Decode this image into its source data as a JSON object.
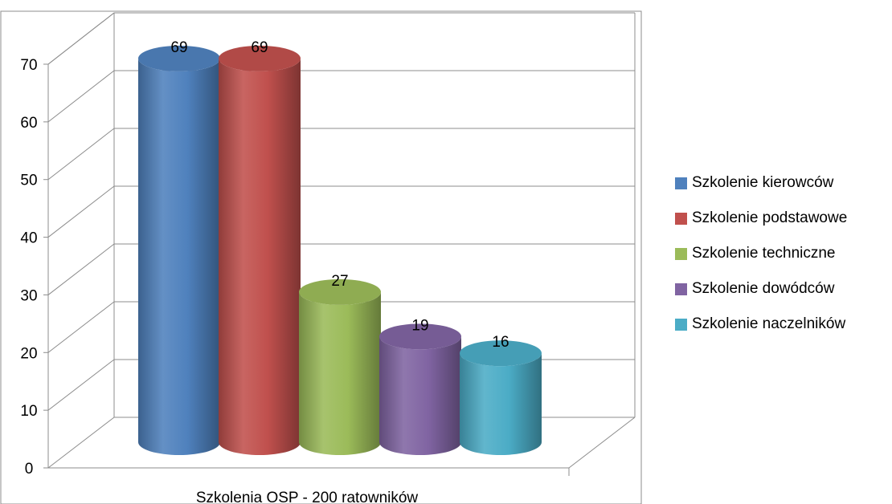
{
  "chart_data": {
    "type": "bar",
    "style": "3d-cylinder",
    "categories": [
      "Szkolenia OSP - 200 ratowników"
    ],
    "series": [
      {
        "name": "Szkolenie kierowców",
        "values": [
          69
        ],
        "color": "#4F81BD"
      },
      {
        "name": "Szkolenie podstawowe",
        "values": [
          69
        ],
        "color": "#C0504D"
      },
      {
        "name": "Szkolenie techniczne",
        "values": [
          27
        ],
        "color": "#9BBB59"
      },
      {
        "name": "Szkolenie dowódców",
        "values": [
          19
        ],
        "color": "#8064A2"
      },
      {
        "name": "Szkolenie naczelników",
        "values": [
          16
        ],
        "color": "#4BACC6"
      }
    ],
    "yticks": [
      "0",
      "10",
      "20",
      "30",
      "40",
      "50",
      "60",
      "70"
    ],
    "ylim": [
      0,
      70
    ],
    "grid": true,
    "legend": "right",
    "data_labels": true
  }
}
